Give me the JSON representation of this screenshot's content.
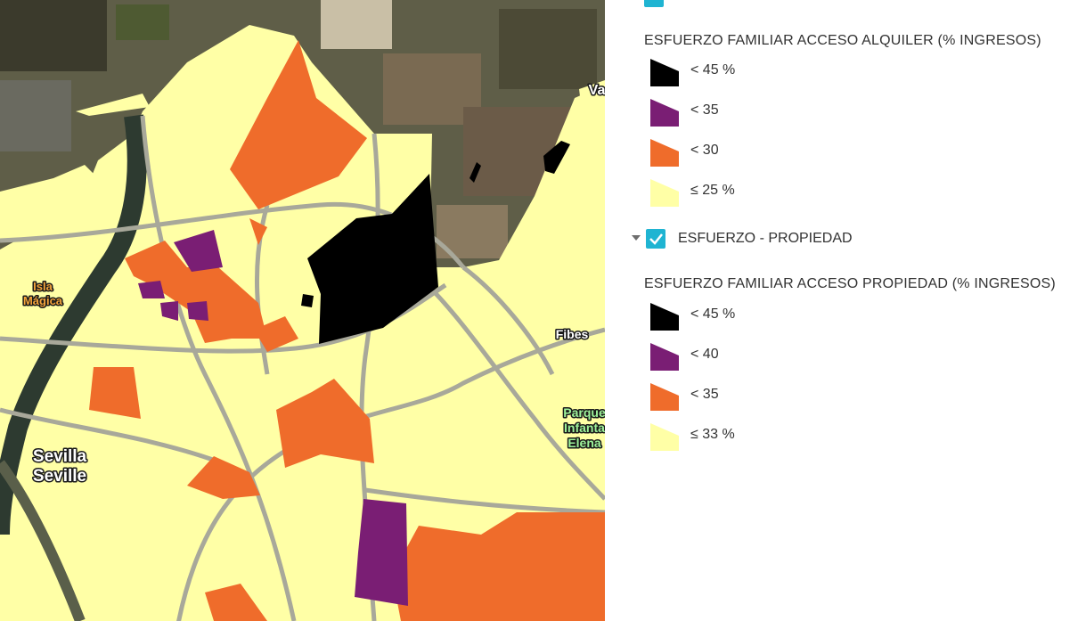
{
  "map": {
    "labels": [
      {
        "lines": [
          "Isla",
          "Mágica"
        ],
        "color": "#f2a23a"
      },
      {
        "lines": [
          "Sevilla",
          "Seville"
        ],
        "color": "#ffffff"
      },
      {
        "lines": [
          "Fibes"
        ],
        "color": "#ffffff"
      },
      {
        "lines": [
          "Parque",
          "Infanta",
          "Elena"
        ],
        "color": "#9ef29a"
      },
      {
        "lines": [
          "Va"
        ],
        "color": "#ffffff"
      }
    ]
  },
  "legend": {
    "layers": [
      {
        "title": "ESFUERZO FAMILIAR ACCESO ALQUILER (% INGRESOS)",
        "items": [
          {
            "label": "< 45 %",
            "color": "#000000"
          },
          {
            "label": "< 35",
            "color": "#7a1e74"
          },
          {
            "label": "< 30",
            "color": "#ef6c2b"
          },
          {
            "label": "≤ 25 %",
            "color": "#ffffa6"
          }
        ]
      },
      {
        "toggle": "ESFUERZO - PROPIEDAD",
        "title": "ESFUERZO FAMILIAR ACCESO PROPIEDAD (% INGRESOS)",
        "items": [
          {
            "label": "< 45 %",
            "color": "#000000"
          },
          {
            "label": "< 40",
            "color": "#7a1e74"
          },
          {
            "label": "< 35",
            "color": "#ef6c2b"
          },
          {
            "label": "≤ 33 %",
            "color": "#ffffa6"
          }
        ]
      }
    ]
  }
}
